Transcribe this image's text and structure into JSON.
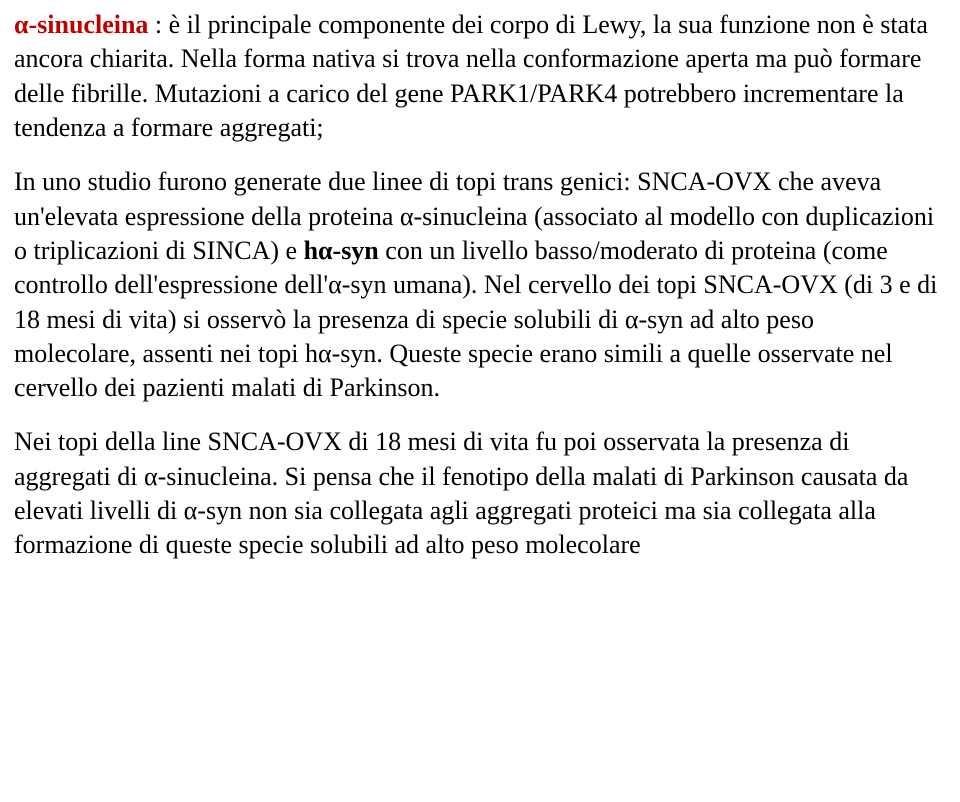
{
  "colors": {
    "text": "#000000",
    "accent": "#c00000",
    "background": "#ffffff"
  },
  "typography": {
    "font_family": "Goudy Old Style / Garamond serif",
    "font_size_pt": 20,
    "line_height": 1.32
  },
  "para1": {
    "term": "α-sinucleina",
    "rest_a": " : è il principale componente dei corpo di Lewy, la sua funzione non è stata ancora chiarita. Nella forma nativa si trova nella conformazione aperta ma può formare delle fibrille. Mutazioni a carico del gene PARK1/PARK4 potrebbero incrementare la tendenza a formare aggregati;"
  },
  "para2": {
    "a": "In uno studio furono generate due linee di topi trans genici: SNCA-OVX che aveva un'elevata espressione della proteina α-sinucleina  (associato al modello con duplicazioni o triplicazioni di SINCA) e ",
    "hsyn": "hα-syn",
    "b": " con un livello basso/moderato di proteina (come controllo dell'espressione dell'α-syn umana). Nel cervello dei topi SNCA-OVX (di 3 e di 18 mesi di vita) si osservò la presenza di specie solubili di α-syn ad alto peso molecolare, assenti nei topi hα-syn. Queste specie erano simili a quelle osservate nel cervello dei pazienti malati di Parkinson."
  },
  "para3": {
    "a": "Nei topi della line SNCA-OVX di 18 mesi di vita fu poi osservata la presenza di aggregati di α-sinucleina. Si pensa che il fenotipo della malati di Parkinson causata da elevati livelli di α-syn non sia collegata agli aggregati proteici ma sia collegata alla formazione di queste specie solubili ad alto peso molecolare"
  }
}
